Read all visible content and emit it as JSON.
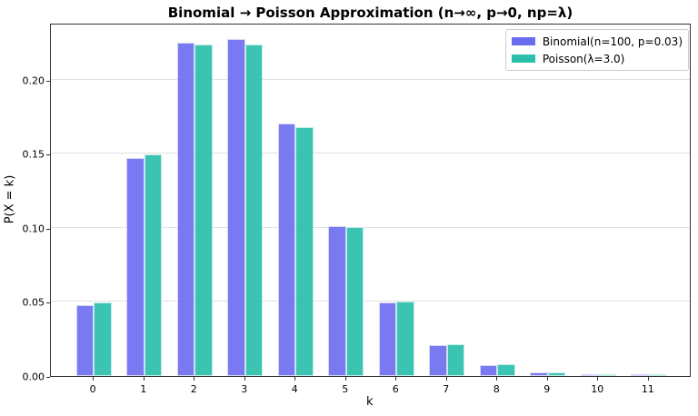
{
  "chart_data": {
    "type": "bar",
    "title": "Binomial → Poisson Approximation (n→∞, p→0, np=λ)",
    "xlabel": "k",
    "ylabel": "P(X = k)",
    "categories": [
      "0",
      "1",
      "2",
      "3",
      "4",
      "5",
      "6",
      "7",
      "8",
      "9",
      "10",
      "11"
    ],
    "series": [
      {
        "name": "Binomial(n=100, p=0.03)",
        "color": "#6b6bf0",
        "values": [
          0.0476,
          0.1471,
          0.2252,
          0.2275,
          0.1706,
          0.1013,
          0.0496,
          0.0206,
          0.0074,
          0.0023,
          0.0007,
          0.0002
        ]
      },
      {
        "name": "Poisson(λ=3.0)",
        "color": "#2bbfab",
        "values": [
          0.0498,
          0.1494,
          0.224,
          0.224,
          0.168,
          0.1008,
          0.0504,
          0.0216,
          0.0081,
          0.0027,
          0.0008,
          0.0002
        ]
      }
    ],
    "yticks": [
      "0.00",
      "0.05",
      "0.10",
      "0.15",
      "0.20"
    ],
    "ytick_values": [
      0,
      0.05,
      0.1,
      0.15,
      0.2
    ],
    "ylim": [
      0,
      0.2386
    ],
    "xlim": [
      -0.85,
      11.85
    ],
    "grid": "y",
    "legend_position": "upper right"
  }
}
